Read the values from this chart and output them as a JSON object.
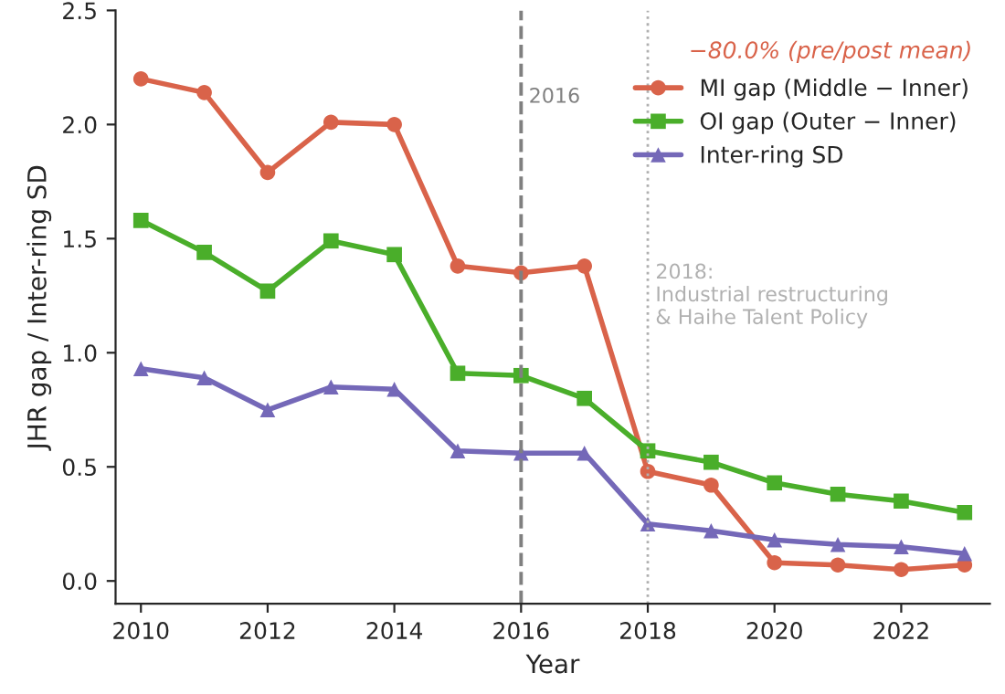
{
  "chart_data": {
    "type": "line",
    "xlabel": "Year",
    "ylabel": "JHR gap / Inter-ring SD",
    "x": [
      2010,
      2011,
      2012,
      2013,
      2014,
      2015,
      2016,
      2017,
      2018,
      2019,
      2020,
      2021,
      2022,
      2023
    ],
    "series": [
      {
        "name": "MI gap (Middle − Inner)",
        "color": "#d9634a",
        "marker": "circle",
        "values": [
          2.2,
          2.14,
          1.79,
          2.01,
          2.0,
          1.38,
          1.35,
          1.38,
          0.48,
          0.42,
          0.08,
          0.07,
          0.05,
          0.07
        ]
      },
      {
        "name": "OI gap (Outer − Inner)",
        "color": "#4aae2a",
        "marker": "square",
        "values": [
          1.58,
          1.44,
          1.27,
          1.49,
          1.43,
          0.91,
          0.9,
          0.8,
          0.57,
          0.52,
          0.43,
          0.38,
          0.35,
          0.3
        ]
      },
      {
        "name": "Inter-ring SD",
        "color": "#7468b8",
        "marker": "triangle",
        "values": [
          0.93,
          0.89,
          0.75,
          0.85,
          0.84,
          0.57,
          0.56,
          0.56,
          0.25,
          0.22,
          0.18,
          0.16,
          0.15,
          0.12
        ]
      }
    ],
    "xlim": [
      2009.6,
      2023.4
    ],
    "ylim": [
      -0.1,
      2.5
    ],
    "xticks": [
      2010,
      2012,
      2014,
      2016,
      2018,
      2020,
      2022
    ],
    "yticks": [
      {
        "value": 0,
        "label": "0.0"
      },
      0.5,
      {
        "value": 1,
        "label": "1.0"
      },
      1.5,
      {
        "value": 2,
        "label": "2.0"
      },
      2.5
    ],
    "ref_lines": [
      {
        "axis": "x",
        "value": 2016,
        "label": "2016",
        "color": "#808080",
        "line_style": "dashed"
      },
      {
        "axis": "x",
        "value": 2018,
        "label": "2018:\nIndustrial restructuring\n& Haihe Talent Policy",
        "color": "#b0b0b0",
        "line_style": "dotted"
      }
    ],
    "annotations": [
      "−80.0% (pre/post mean)"
    ],
    "legend": "top right",
    "grid": false,
    "line_style": "solid"
  }
}
